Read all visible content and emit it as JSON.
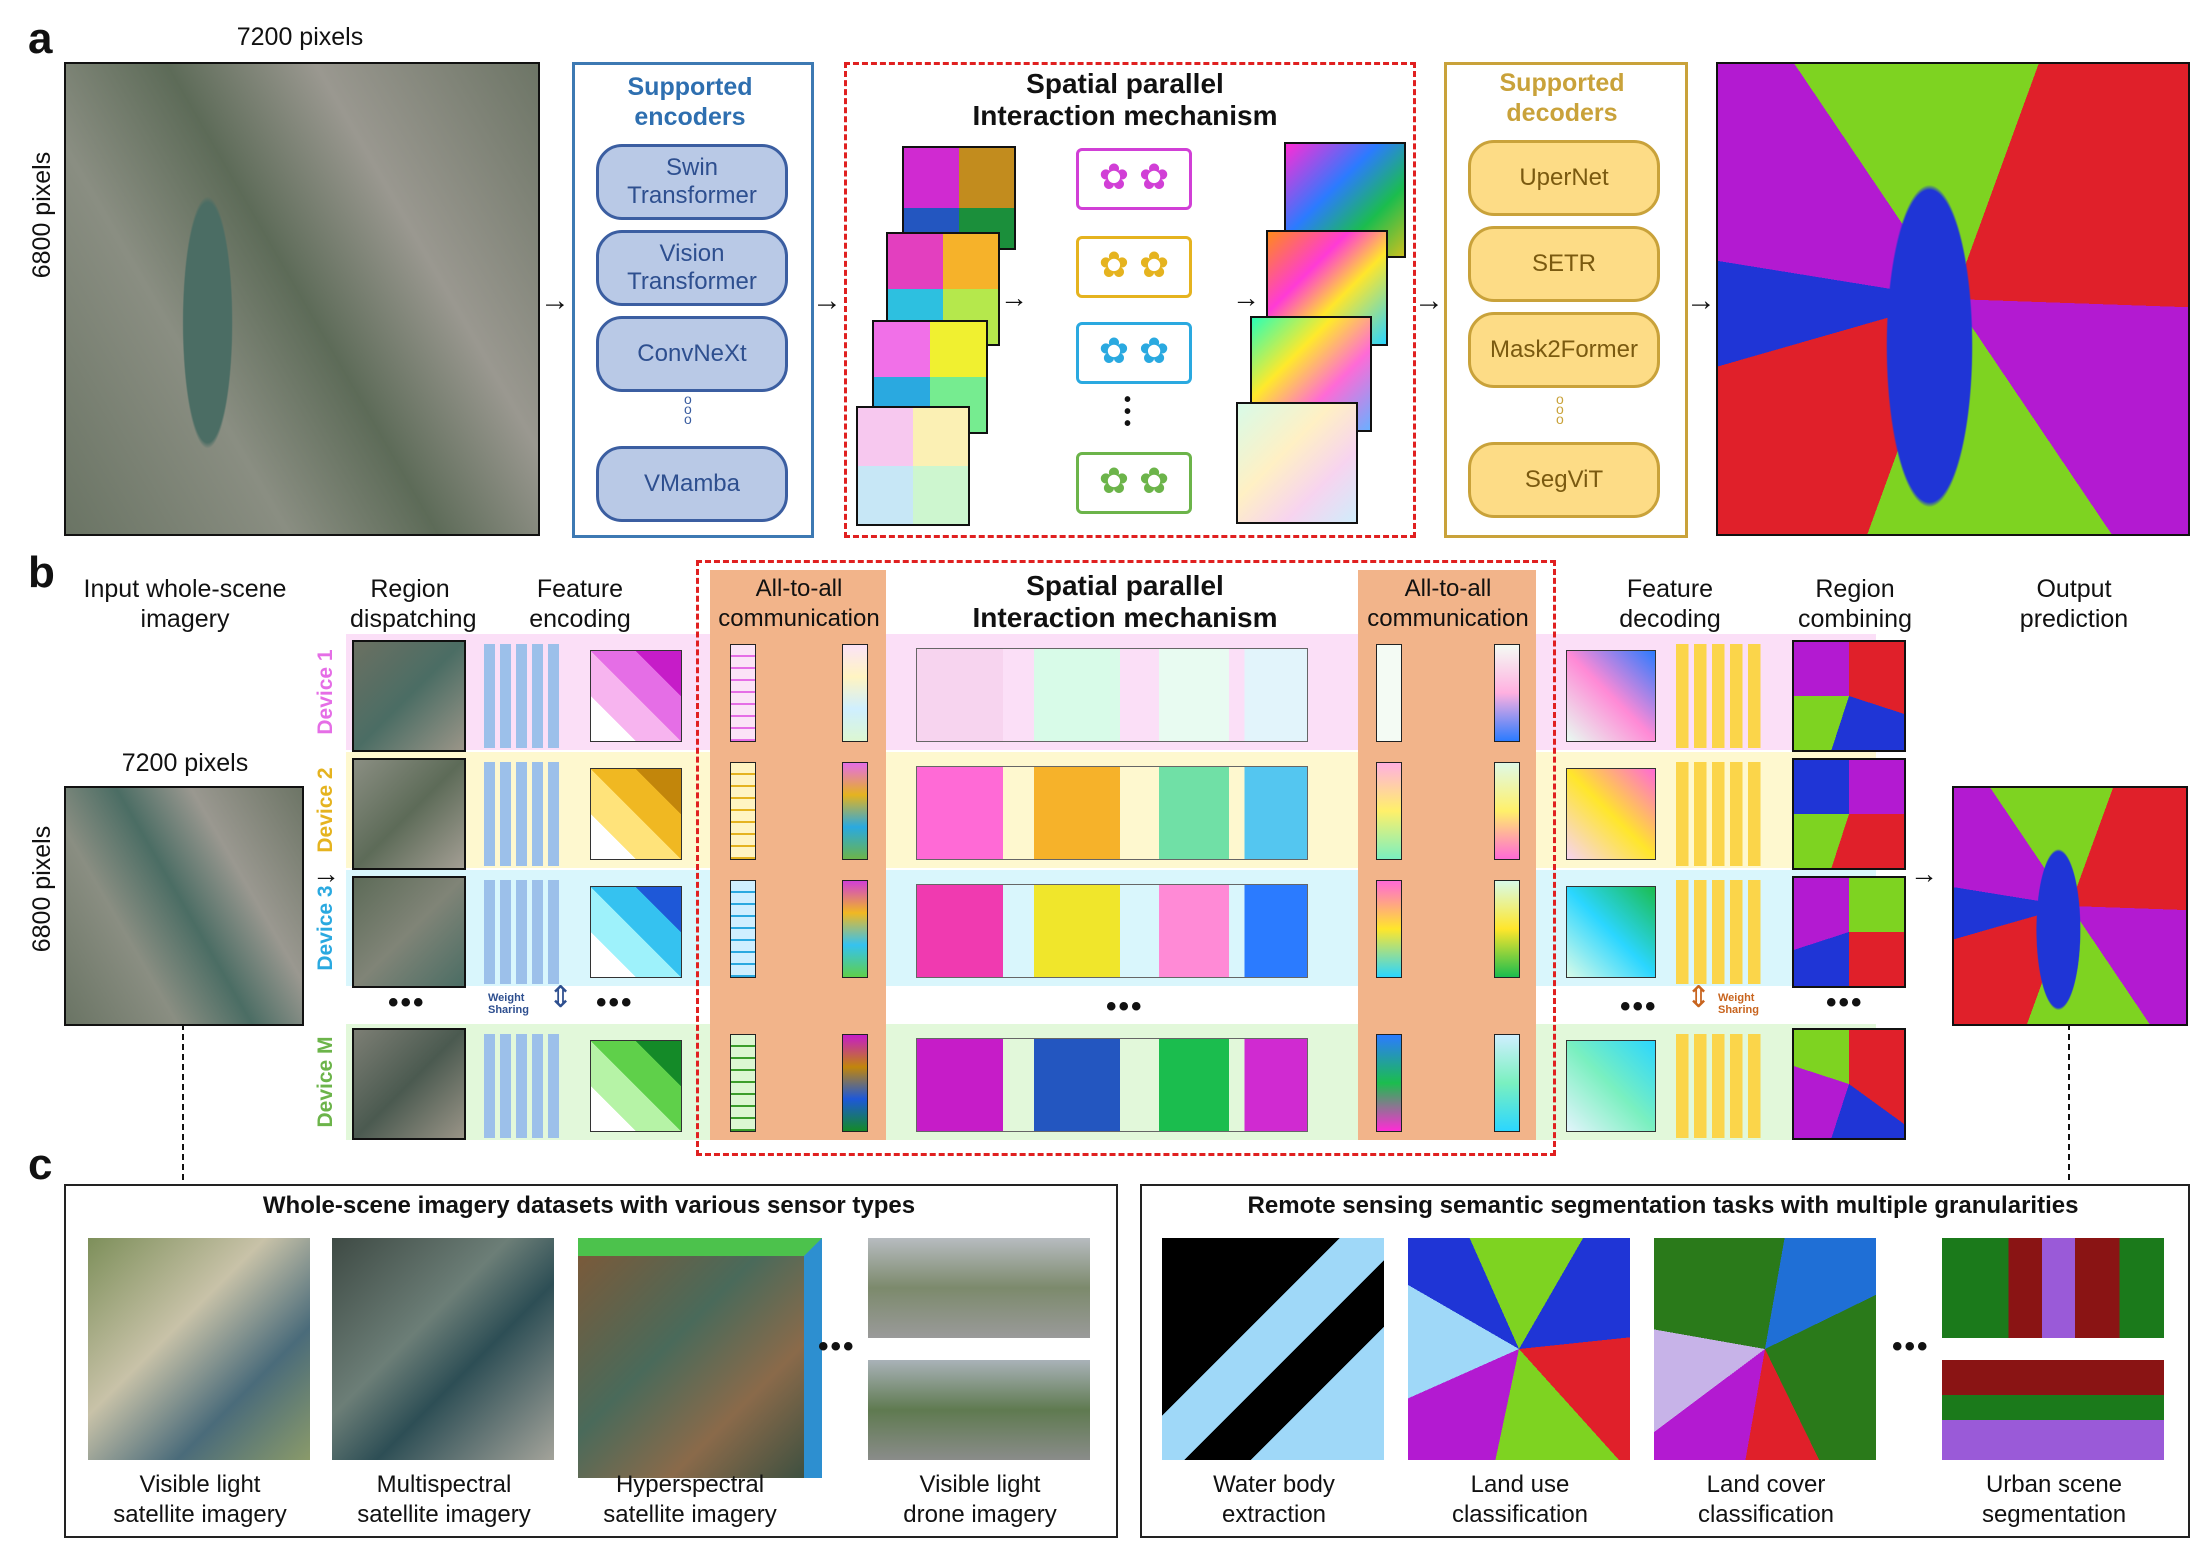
{
  "panel_a": {
    "letter": "a",
    "width_label": "7200 pixels",
    "height_label": "6800 pixels",
    "encoders_title": "Supported encoders",
    "encoders": [
      "Swin Transformer",
      "Vision Transformer",
      "ConvNeXt",
      "VMamba"
    ],
    "mechanism_title": "Spatial parallel Interaction mechanism",
    "decoders_title": "Supported decoders",
    "decoders": [
      "UperNet",
      "SETR",
      "Mask2Former",
      "SegViT"
    ]
  },
  "panel_b": {
    "letter": "b",
    "input_title": "Input whole-scene imagery",
    "width_label": "7200 pixels",
    "height_label": "6800 pixels",
    "region_dispatching": "Region dispatching",
    "feature_encoding": "Feature encoding",
    "all_to_all_left": "All-to-all communication",
    "mechanism_title": "Spatial parallel Interaction mechanism",
    "all_to_all_right": "All-to-all communication",
    "feature_decoding": "Feature decoding",
    "region_combining": "Region combining",
    "output_title": "Output prediction",
    "devices": [
      {
        "label": "Device 1",
        "color": "#e56ee6"
      },
      {
        "label": "Device 2",
        "color": "#e5b31f"
      },
      {
        "label": "Device 3",
        "color": "#2aa9e0"
      },
      {
        "label": "Device M",
        "color": "#6cb44a"
      }
    ],
    "weight_sharing": "Weight Sharing",
    "ellipsis": "•••"
  },
  "panel_c": {
    "letter": "c",
    "datasets_title": "Whole-scene imagery datasets with various sensor types",
    "datasets": [
      "Visible light satellite imagery",
      "Multispectral satellite imagery",
      "Hyperspectral satellite imagery",
      "Visible light drone imagery"
    ],
    "tasks_title": "Remote sensing semantic segmentation tasks with multiple granularities",
    "tasks": [
      "Water body extraction",
      "Land use classification",
      "Land cover classification",
      "Urban scene segmentation"
    ]
  }
}
